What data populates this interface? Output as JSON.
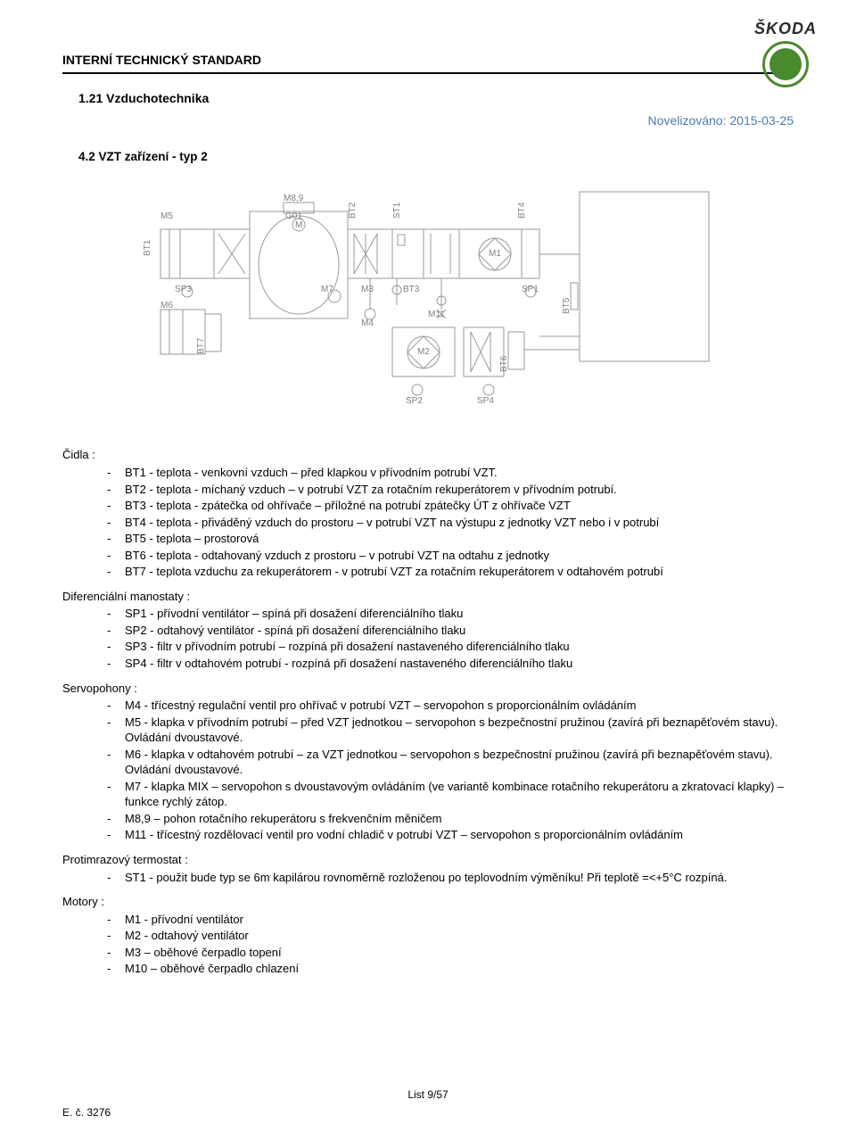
{
  "brand": "ŠKODA",
  "header_standard": "INTERNÍ TECHNICKÝ STANDARD",
  "section_title": "1.21 Vzduchotechnika",
  "novel_label": "Novelizováno:",
  "novel_date": "2015-03-25",
  "subsection": "4.2    VZT zařízení - typ 2",
  "diagram": {
    "labels": {
      "M5": "M5",
      "BT1": "BT1",
      "BT2": "BT2",
      "ST1": "ST1",
      "BT4": "BT4",
      "M89": "M8,9",
      "G01": "G01",
      "M7": "M7",
      "M3": "M3",
      "BT3": "BT3",
      "M1": "M1",
      "SP1": "SP1",
      "BT5": "BT5",
      "SP3": "SP3",
      "M4": "M4",
      "M11": "M11",
      "M6": "M6",
      "BT7": "BT7",
      "M2": "M2",
      "BT6": "BT6",
      "SP2": "SP2",
      "SP4": "SP4",
      "M": "M"
    },
    "colors": {
      "stroke": "#9a9a9a",
      "label": "#808080",
      "fan_stroke": "#808080"
    }
  },
  "sections": [
    {
      "title": "Čidla :",
      "items": [
        "BT1 - teplota - venkovní vzduch – před klapkou v přívodním potrubí VZT.",
        "BT2 - teplota - míchaný vzduch – v potrubí VZT za rotačním rekuperátorem v přívodním potrubí.",
        "BT3 - teplota - zpátečka od ohřívače – příložné na potrubí zpátečky ÚT z ohřívače VZT",
        "BT4 - teplota - přiváděný vzduch do prostoru – v potrubí VZT na výstupu z jednotky VZT nebo i v potrubí",
        "BT5 - teplota – prostorová",
        "BT6 - teplota - odtahovaný vzduch z prostoru – v potrubí VZT na odtahu z jednotky",
        "BT7 - teplota vzduchu za rekuperátorem - v potrubí VZT za rotačním rekuperátorem v odtahovém potrubí"
      ]
    },
    {
      "title": "Diferenciální manostaty :",
      "items": [
        "SP1 - přívodní ventilátor – spíná při dosažení diferenciálního tlaku",
        "SP2 - odtahový ventilátor - spíná při dosažení diferenciálního tlaku",
        "SP3 - filtr v přívodním potrubí – rozpíná při dosažení nastaveného diferenciálního tlaku",
        "SP4 - filtr v odtahovém potrubí - rozpíná při dosažení nastaveného diferenciálního tlaku"
      ]
    },
    {
      "title": "Servopohony :",
      "items": [
        "M4 - třícestný regulační ventil pro ohřívač v potrubí VZT – servopohon s proporcionálním ovládáním",
        "M5 - klapka v přívodním potrubí – před VZT jednotkou – servopohon s bezpečnostní pružinou (zavírá při beznapěťovém stavu). Ovládání dvoustavové.",
        "M6 - klapka v odtahovém potrubí – za VZT jednotkou – servopohon s bezpečnostní pružinou (zavírá při beznapěťovém stavu). Ovládání dvoustavové.",
        "M7 - klapka MIX – servopohon s dvoustavovým ovládáním (ve variantě kombinace rotačního rekuperátoru a zkratovací klapky) – funkce rychlý zátop.",
        "M8,9 – pohon rotačního rekuperátoru s frekvenčním měničem",
        "M11 - třícestný rozdělovací ventil pro vodní chladič v potrubí VZT – servopohon s proporcionálním ovládáním"
      ]
    },
    {
      "title": "Protimrazový termostat :",
      "items": [
        "ST1 - použit bude typ se 6m kapilárou rovnoměrně rozloženou po teplovodním výměníku! Při teplotě =<+5°C rozpíná."
      ]
    },
    {
      "title": "Motory :",
      "items": [
        "M1 - přívodní ventilátor",
        "M2 - odtahový ventilátor",
        "M3 – oběhové čerpadlo topení",
        "M10 – oběhové čerpadlo chlazení"
      ]
    }
  ],
  "footer_center": "List  9/57",
  "footer_left": "E. č. 3276"
}
